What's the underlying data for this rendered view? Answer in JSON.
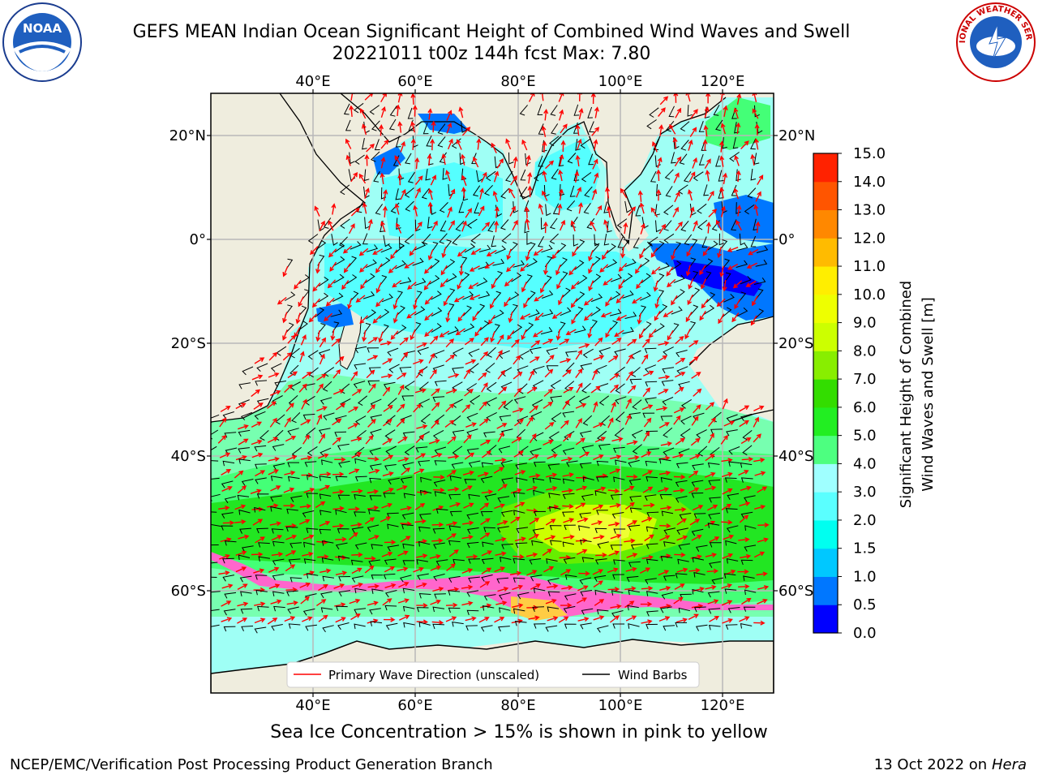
{
  "title": {
    "line1": "GEFS MEAN Indian Ocean Significant Height of Combined Wind Waves and Swell",
    "line2": "20221011 t00z 144h fcst   Max: 7.80"
  },
  "logos": {
    "left": {
      "icon": "noaa-logo",
      "text": "NOAA"
    },
    "right": {
      "icon": "nws-logo",
      "text": "NATIONAL WEATHER SERVICE"
    }
  },
  "map": {
    "lon_ticks_top": [
      "40°E",
      "60°E",
      "80°E",
      "100°E",
      "120°E"
    ],
    "lon_ticks_bottom": [
      "40°E",
      "60°E",
      "80°E",
      "100°E",
      "120°E"
    ],
    "lat_ticks_left": [
      "20°N",
      "0°",
      "20°S",
      "40°S",
      "60°S"
    ],
    "lat_ticks_right": [
      "20°N",
      "0°",
      "20°S",
      "40°S",
      "60°S"
    ],
    "land_color": "#efedde",
    "ocean_calm_color": "#9ffff5",
    "legend": {
      "wave_label": "Primary Wave Direction (unscaled)",
      "wave_color": "#ff0000",
      "wind_label": "Wind Barbs",
      "wind_color": "#000000"
    }
  },
  "colorbar": {
    "label_line1": "Significant Height of Combined",
    "label_line2": "Wind Waves and Swell [m]",
    "ticks": [
      "0.0",
      "0.5",
      "1.0",
      "1.5",
      "2.0",
      "3.0",
      "4.0",
      "5.0",
      "6.0",
      "7.0",
      "8.0",
      "9.0",
      "10.0",
      "11.0",
      "12.0",
      "13.0",
      "14.0",
      "15.0"
    ],
    "colors": [
      "#0000ff",
      "#0077ff",
      "#00c8ff",
      "#00fff0",
      "#5affff",
      "#9fffff",
      "#4dff80",
      "#22ee22",
      "#33dd00",
      "#88ee00",
      "#ccff00",
      "#eeff00",
      "#ffee00",
      "#ffbb00",
      "#ff8800",
      "#ff5500",
      "#ff2200",
      "#ff0000"
    ]
  },
  "caption": "Sea Ice Concentration > 15% is shown in pink to yellow",
  "footer": {
    "left": "NCEP/EMC/Verification Post Processing Product Generation Branch",
    "right_date": "13 Oct 2022 on ",
    "right_host": "Hera"
  }
}
